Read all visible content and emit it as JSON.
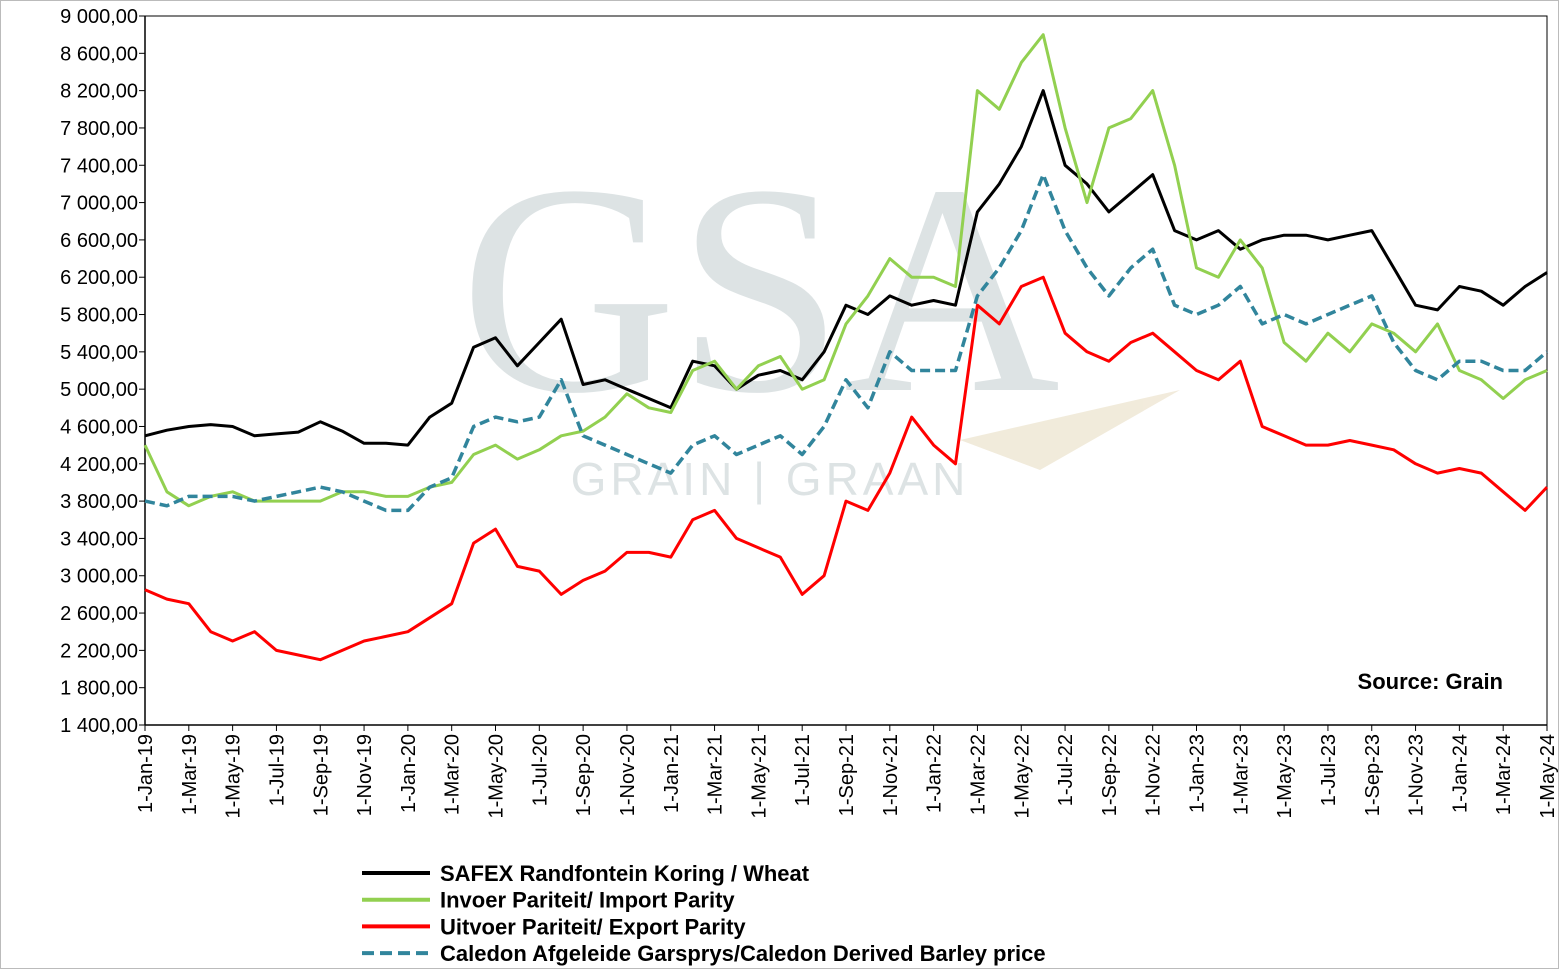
{
  "chart_data": {
    "type": "line",
    "annotation": "Source: Grain",
    "watermark": {
      "logo": "GSA",
      "text": "GRAIN | GRAAN"
    },
    "x": [
      "1-Jan-19",
      "1-Feb-19",
      "1-Mar-19",
      "1-Apr-19",
      "1-May-19",
      "1-Jun-19",
      "1-Jul-19",
      "1-Aug-19",
      "1-Sep-19",
      "1-Oct-19",
      "1-Nov-19",
      "1-Dec-19",
      "1-Jan-20",
      "1-Feb-20",
      "1-Mar-20",
      "1-Apr-20",
      "1-May-20",
      "1-Jun-20",
      "1-Jul-20",
      "1-Aug-20",
      "1-Sep-20",
      "1-Oct-20",
      "1-Nov-20",
      "1-Dec-20",
      "1-Jan-21",
      "1-Feb-21",
      "1-Mar-21",
      "1-Apr-21",
      "1-May-21",
      "1-Jun-21",
      "1-Jul-21",
      "1-Aug-21",
      "1-Sep-21",
      "1-Oct-21",
      "1-Nov-21",
      "1-Dec-21",
      "1-Jan-22",
      "1-Feb-22",
      "1-Mar-22",
      "1-Apr-22",
      "1-May-22",
      "1-Jun-22",
      "1-Jul-22",
      "1-Aug-22",
      "1-Sep-22",
      "1-Oct-22",
      "1-Nov-22",
      "1-Dec-22",
      "1-Jan-23",
      "1-Feb-23",
      "1-Mar-23",
      "1-Apr-23",
      "1-May-23",
      "1-Jun-23",
      "1-Jul-23",
      "1-Aug-23",
      "1-Sep-23",
      "1-Oct-23",
      "1-Nov-23",
      "1-Dec-23",
      "1-Jan-24",
      "1-Feb-24",
      "1-Mar-24",
      "1-Apr-24",
      "1-May-24"
    ],
    "xticks": [
      "1-Jan-19",
      "1-Mar-19",
      "1-May-19",
      "1-Jul-19",
      "1-Sep-19",
      "1-Nov-19",
      "1-Jan-20",
      "1-Mar-20",
      "1-May-20",
      "1-Jul-20",
      "1-Sep-20",
      "1-Nov-20",
      "1-Jan-21",
      "1-Mar-21",
      "1-May-21",
      "1-Jul-21",
      "1-Sep-21",
      "1-Nov-21",
      "1-Jan-22",
      "1-Mar-22",
      "1-May-22",
      "1-Jul-22",
      "1-Sep-22",
      "1-Nov-22",
      "1-Jan-23",
      "1-Mar-23",
      "1-May-23",
      "1-Jul-23",
      "1-Sep-23",
      "1-Nov-23",
      "1-Jan-24",
      "1-Mar-24",
      "1-May-24"
    ],
    "ylim": [
      1400,
      9000
    ],
    "yticks": [
      {
        "value": 1400,
        "label": "1 400,00"
      },
      {
        "value": 1800,
        "label": "1 800,00"
      },
      {
        "value": 2200,
        "label": "2 200,00"
      },
      {
        "value": 2600,
        "label": "2 600,00"
      },
      {
        "value": 3000,
        "label": "3 000,00"
      },
      {
        "value": 3400,
        "label": "3 400,00"
      },
      {
        "value": 3800,
        "label": "3 800,00"
      },
      {
        "value": 4200,
        "label": "4 200,00"
      },
      {
        "value": 4600,
        "label": "4 600,00"
      },
      {
        "value": 5000,
        "label": "5 000,00"
      },
      {
        "value": 5400,
        "label": "5 400,00"
      },
      {
        "value": 5800,
        "label": "5 800,00"
      },
      {
        "value": 6200,
        "label": "6 200,00"
      },
      {
        "value": 6600,
        "label": "6 600,00"
      },
      {
        "value": 7000,
        "label": "7 000,00"
      },
      {
        "value": 7400,
        "label": "7 400,00"
      },
      {
        "value": 7800,
        "label": "7 800,00"
      },
      {
        "value": 8200,
        "label": "8 200,00"
      },
      {
        "value": 8600,
        "label": "8 600,00"
      },
      {
        "value": 9000,
        "label": "9 000,00"
      }
    ],
    "grid": false,
    "legend": "bottom",
    "series": [
      {
        "name": "SAFEX Randfontein Koring / Wheat",
        "color": "#000000",
        "dash": false,
        "values": [
          4500,
          4560,
          4600,
          4620,
          4600,
          4500,
          4520,
          4540,
          4650,
          4550,
          4420,
          4420,
          4400,
          4700,
          4850,
          5450,
          5550,
          5250,
          5500,
          5750,
          5050,
          5100,
          5000,
          4900,
          4800,
          5300,
          5250,
          5000,
          5150,
          5200,
          5100,
          5400,
          5900,
          5800,
          6000,
          5900,
          5950,
          5900,
          6900,
          7200,
          7600,
          8200,
          7400,
          7200,
          6900,
          7100,
          7300,
          6700,
          6600,
          6700,
          6500,
          6600,
          6650,
          6650,
          6600,
          6650,
          6700,
          6300,
          5900,
          5850,
          6100,
          6050,
          5900,
          6100,
          6250
        ]
      },
      {
        "name": "Invoer Pariteit/ Import Parity",
        "color": "#92d050",
        "dash": false,
        "values": [
          4400,
          3900,
          3750,
          3850,
          3900,
          3800,
          3800,
          3800,
          3800,
          3900,
          3900,
          3850,
          3850,
          3950,
          4000,
          4300,
          4400,
          4250,
          4350,
          4500,
          4550,
          4700,
          4950,
          4800,
          4750,
          5200,
          5300,
          5000,
          5250,
          5350,
          5000,
          5100,
          5700,
          6000,
          6400,
          6200,
          6200,
          6100,
          8200,
          8000,
          8500,
          8800,
          7800,
          7000,
          7800,
          7900,
          8200,
          7400,
          6300,
          6200,
          6600,
          6300,
          5500,
          5300,
          5600,
          5400,
          5700,
          5600,
          5400,
          5700,
          5200,
          5100,
          4900,
          5100,
          5200
        ]
      },
      {
        "name": "Uitvoer Pariteit/ Export Parity",
        "color": "#ff0000",
        "dash": false,
        "values": [
          2850,
          2750,
          2700,
          2400,
          2300,
          2400,
          2200,
          2150,
          2100,
          2200,
          2300,
          2350,
          2400,
          2550,
          2700,
          3350,
          3500,
          3100,
          3050,
          2800,
          2950,
          3050,
          3250,
          3250,
          3200,
          3600,
          3700,
          3400,
          3300,
          3200,
          2800,
          3000,
          3800,
          3700,
          4100,
          4700,
          4400,
          4200,
          5900,
          5700,
          6100,
          6200,
          5600,
          5400,
          5300,
          5500,
          5600,
          5400,
          5200,
          5100,
          5300,
          4600,
          4500,
          4400,
          4400,
          4450,
          4400,
          4350,
          4200,
          4100,
          4150,
          4100,
          3900,
          3700,
          3950
        ]
      },
      {
        "name": "Caledon Afgeleide Garsprys/Caledon Derived Barley price",
        "color": "#31859c",
        "dash": true,
        "values": [
          3800,
          3750,
          3850,
          3850,
          3850,
          3800,
          3850,
          3900,
          3950,
          3900,
          3800,
          3700,
          3700,
          3950,
          4050,
          4600,
          4700,
          4650,
          4700,
          5100,
          4500,
          4400,
          4300,
          4200,
          4100,
          4400,
          4500,
          4300,
          4400,
          4500,
          4300,
          4600,
          5100,
          4800,
          5400,
          5200,
          5200,
          5200,
          6000,
          6300,
          6700,
          7300,
          6700,
          6300,
          6000,
          6300,
          6500,
          5900,
          5800,
          5900,
          6100,
          5700,
          5800,
          5700,
          5800,
          5900,
          6000,
          5500,
          5200,
          5100,
          5300,
          5300,
          5200,
          5200,
          5400
        ]
      }
    ]
  }
}
